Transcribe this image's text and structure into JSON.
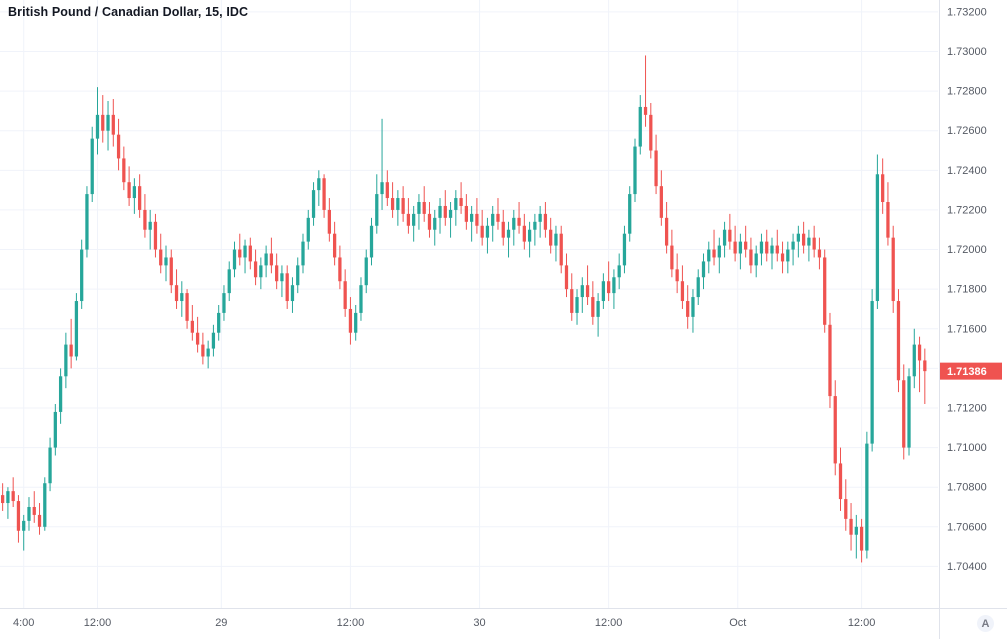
{
  "header": {
    "title": "British Pound / Canadian Dollar, 15, IDC"
  },
  "misc": {
    "corner_button": "A"
  },
  "colors": {
    "up": "#26a69a",
    "down": "#ef5350",
    "grid": "#f0f3fa",
    "axis_border": "#e0e3eb",
    "axis_text": "#555a64",
    "title": "#131722",
    "label_bg": "#ef5350",
    "label_text": "#ffffff",
    "background": "#ffffff"
  },
  "price_label": {
    "value": "1.71386"
  },
  "chart_data": {
    "type": "candlestick",
    "title": "British Pound / Canadian Dollar, 15, IDC",
    "symbol": "British Pound / Canadian Dollar",
    "interval": "15",
    "feed": "IDC",
    "ylim": [
      1.7019,
      1.7326
    ],
    "y_ticks": [
      1.704,
      1.706,
      1.708,
      1.71,
      1.712,
      1.714,
      1.716,
      1.718,
      1.72,
      1.722,
      1.724,
      1.726,
      1.728,
      1.73,
      1.732
    ],
    "x_ticks": [
      {
        "label": "4:00",
        "i": 4
      },
      {
        "label": "12:00",
        "i": 18
      },
      {
        "label": "29",
        "i": 41.5
      },
      {
        "label": "12:00",
        "i": 66
      },
      {
        "label": "30",
        "i": 90.5
      },
      {
        "label": "12:00",
        "i": 115
      },
      {
        "label": "Oct",
        "i": 139.5
      },
      {
        "label": "12:00",
        "i": 163
      }
    ],
    "last_price": 1.71386,
    "grid": true,
    "legend_position": "none",
    "candles": [
      [
        1.7076,
        1.7082,
        1.7068,
        1.7072
      ],
      [
        1.7072,
        1.708,
        1.7064,
        1.7078
      ],
      [
        1.7078,
        1.7085,
        1.707,
        1.7073
      ],
      [
        1.7073,
        1.7076,
        1.7052,
        1.7058
      ],
      [
        1.7058,
        1.7066,
        1.7048,
        1.7063
      ],
      [
        1.7063,
        1.7075,
        1.7058,
        1.707
      ],
      [
        1.707,
        1.7078,
        1.7062,
        1.7066
      ],
      [
        1.7066,
        1.7072,
        1.7056,
        1.706
      ],
      [
        1.706,
        1.7085,
        1.7058,
        1.7082
      ],
      [
        1.7082,
        1.7105,
        1.7078,
        1.71
      ],
      [
        1.71,
        1.7122,
        1.7096,
        1.7118
      ],
      [
        1.7118,
        1.714,
        1.7112,
        1.7136
      ],
      [
        1.7136,
        1.7158,
        1.713,
        1.7152
      ],
      [
        1.7152,
        1.7165,
        1.714,
        1.7146
      ],
      [
        1.7146,
        1.7178,
        1.7144,
        1.7174
      ],
      [
        1.7174,
        1.7205,
        1.717,
        1.72
      ],
      [
        1.72,
        1.7232,
        1.7196,
        1.7228
      ],
      [
        1.7228,
        1.7262,
        1.7224,
        1.7256
      ],
      [
        1.7256,
        1.7282,
        1.7248,
        1.7268
      ],
      [
        1.7268,
        1.7278,
        1.7254,
        1.726
      ],
      [
        1.726,
        1.7275,
        1.725,
        1.7268
      ],
      [
        1.7268,
        1.7276,
        1.7252,
        1.7258
      ],
      [
        1.7258,
        1.7266,
        1.724,
        1.7246
      ],
      [
        1.7246,
        1.7252,
        1.723,
        1.7234
      ],
      [
        1.7234,
        1.7242,
        1.7222,
        1.7226
      ],
      [
        1.7226,
        1.7236,
        1.7218,
        1.7232
      ],
      [
        1.7232,
        1.7238,
        1.7216,
        1.722
      ],
      [
        1.722,
        1.7228,
        1.7206,
        1.721
      ],
      [
        1.721,
        1.722,
        1.72,
        1.7214
      ],
      [
        1.7214,
        1.7218,
        1.7196,
        1.72
      ],
      [
        1.72,
        1.7208,
        1.7188,
        1.7192
      ],
      [
        1.7192,
        1.7202,
        1.7184,
        1.7196
      ],
      [
        1.7196,
        1.72,
        1.7178,
        1.7182
      ],
      [
        1.7182,
        1.719,
        1.717,
        1.7174
      ],
      [
        1.7174,
        1.7184,
        1.7166,
        1.7178
      ],
      [
        1.7178,
        1.718,
        1.716,
        1.7164
      ],
      [
        1.7164,
        1.7172,
        1.7154,
        1.7158
      ],
      [
        1.7158,
        1.7166,
        1.7148,
        1.7152
      ],
      [
        1.7152,
        1.7158,
        1.7142,
        1.7146
      ],
      [
        1.7146,
        1.7154,
        1.714,
        1.715
      ],
      [
        1.715,
        1.7162,
        1.7146,
        1.7158
      ],
      [
        1.7158,
        1.7172,
        1.7154,
        1.7168
      ],
      [
        1.7168,
        1.7182,
        1.7164,
        1.7178
      ],
      [
        1.7178,
        1.7194,
        1.7174,
        1.719
      ],
      [
        1.719,
        1.7204,
        1.7186,
        1.72
      ],
      [
        1.72,
        1.7208,
        1.7192,
        1.7196
      ],
      [
        1.7196,
        1.7205,
        1.7188,
        1.7202
      ],
      [
        1.7202,
        1.7206,
        1.719,
        1.7194
      ],
      [
        1.7194,
        1.72,
        1.7182,
        1.7186
      ],
      [
        1.7186,
        1.7196,
        1.718,
        1.7192
      ],
      [
        1.7192,
        1.7202,
        1.7186,
        1.7198
      ],
      [
        1.7198,
        1.7206,
        1.7188,
        1.7192
      ],
      [
        1.7192,
        1.7198,
        1.718,
        1.7184
      ],
      [
        1.7184,
        1.7192,
        1.7176,
        1.7188
      ],
      [
        1.7188,
        1.7192,
        1.717,
        1.7174
      ],
      [
        1.7174,
        1.7186,
        1.7168,
        1.7182
      ],
      [
        1.7182,
        1.7196,
        1.7178,
        1.7192
      ],
      [
        1.7192,
        1.7208,
        1.7188,
        1.7204
      ],
      [
        1.7204,
        1.722,
        1.72,
        1.7216
      ],
      [
        1.7216,
        1.7234,
        1.7212,
        1.723
      ],
      [
        1.723,
        1.724,
        1.7222,
        1.7236
      ],
      [
        1.7236,
        1.7238,
        1.7216,
        1.722
      ],
      [
        1.722,
        1.7226,
        1.7204,
        1.7208
      ],
      [
        1.7208,
        1.7214,
        1.7192,
        1.7196
      ],
      [
        1.7196,
        1.7202,
        1.718,
        1.7184
      ],
      [
        1.7184,
        1.719,
        1.7166,
        1.717
      ],
      [
        1.717,
        1.7176,
        1.7152,
        1.7158
      ],
      [
        1.7158,
        1.7172,
        1.7154,
        1.7168
      ],
      [
        1.7168,
        1.7186,
        1.7164,
        1.7182
      ],
      [
        1.7182,
        1.72,
        1.7178,
        1.7196
      ],
      [
        1.7196,
        1.7216,
        1.7192,
        1.7212
      ],
      [
        1.7212,
        1.7238,
        1.7208,
        1.7228
      ],
      [
        1.7228,
        1.7266,
        1.722,
        1.7234
      ],
      [
        1.7234,
        1.724,
        1.7222,
        1.7226
      ],
      [
        1.7226,
        1.7234,
        1.7216,
        1.722
      ],
      [
        1.722,
        1.723,
        1.7212,
        1.7226
      ],
      [
        1.7226,
        1.7232,
        1.7214,
        1.7218
      ],
      [
        1.7218,
        1.7226,
        1.7208,
        1.7212
      ],
      [
        1.7212,
        1.7222,
        1.7204,
        1.7218
      ],
      [
        1.7218,
        1.7228,
        1.721,
        1.7224
      ],
      [
        1.7224,
        1.7232,
        1.7214,
        1.7218
      ],
      [
        1.7218,
        1.7224,
        1.7206,
        1.721
      ],
      [
        1.721,
        1.722,
        1.7202,
        1.7216
      ],
      [
        1.7216,
        1.7226,
        1.7208,
        1.7222
      ],
      [
        1.7222,
        1.723,
        1.7212,
        1.7216
      ],
      [
        1.7216,
        1.7224,
        1.7206,
        1.722
      ],
      [
        1.722,
        1.723,
        1.7212,
        1.7226
      ],
      [
        1.7226,
        1.7234,
        1.7218,
        1.7222
      ],
      [
        1.7222,
        1.7228,
        1.721,
        1.7214
      ],
      [
        1.7214,
        1.7222,
        1.7204,
        1.7218
      ],
      [
        1.7218,
        1.7226,
        1.7208,
        1.7212
      ],
      [
        1.7212,
        1.722,
        1.7202,
        1.7206
      ],
      [
        1.7206,
        1.7216,
        1.7198,
        1.7212
      ],
      [
        1.7212,
        1.7222,
        1.7204,
        1.7218
      ],
      [
        1.7218,
        1.7226,
        1.721,
        1.7214
      ],
      [
        1.7214,
        1.722,
        1.7202,
        1.7206
      ],
      [
        1.7206,
        1.7214,
        1.7196,
        1.721
      ],
      [
        1.721,
        1.722,
        1.7202,
        1.7216
      ],
      [
        1.7216,
        1.7224,
        1.7208,
        1.7212
      ],
      [
        1.7212,
        1.7218,
        1.72,
        1.7204
      ],
      [
        1.7204,
        1.7214,
        1.7196,
        1.721
      ],
      [
        1.721,
        1.7218,
        1.7202,
        1.7214
      ],
      [
        1.7214,
        1.7222,
        1.7206,
        1.7218
      ],
      [
        1.7218,
        1.7224,
        1.7206,
        1.721
      ],
      [
        1.721,
        1.7216,
        1.7198,
        1.7202
      ],
      [
        1.7202,
        1.7212,
        1.7194,
        1.7208
      ],
      [
        1.7208,
        1.7212,
        1.7188,
        1.7192
      ],
      [
        1.7192,
        1.7198,
        1.7176,
        1.718
      ],
      [
        1.718,
        1.7188,
        1.7164,
        1.7168
      ],
      [
        1.7168,
        1.718,
        1.7162,
        1.7176
      ],
      [
        1.7176,
        1.7186,
        1.7168,
        1.7182
      ],
      [
        1.7182,
        1.7192,
        1.7172,
        1.7176
      ],
      [
        1.7176,
        1.7184,
        1.7162,
        1.7166
      ],
      [
        1.7166,
        1.7178,
        1.7156,
        1.7174
      ],
      [
        1.7174,
        1.7188,
        1.717,
        1.7184
      ],
      [
        1.7184,
        1.7194,
        1.7174,
        1.7178
      ],
      [
        1.7178,
        1.719,
        1.717,
        1.7186
      ],
      [
        1.7186,
        1.7198,
        1.718,
        1.7192
      ],
      [
        1.7192,
        1.7212,
        1.7188,
        1.7208
      ],
      [
        1.7208,
        1.7232,
        1.7204,
        1.7228
      ],
      [
        1.7228,
        1.7256,
        1.7224,
        1.7252
      ],
      [
        1.7252,
        1.7278,
        1.7248,
        1.7272
      ],
      [
        1.7272,
        1.7298,
        1.7262,
        1.7268
      ],
      [
        1.7268,
        1.7274,
        1.7246,
        1.725
      ],
      [
        1.725,
        1.7258,
        1.7228,
        1.7232
      ],
      [
        1.7232,
        1.724,
        1.7212,
        1.7216
      ],
      [
        1.7216,
        1.7224,
        1.7198,
        1.7202
      ],
      [
        1.7202,
        1.721,
        1.7186,
        1.719
      ],
      [
        1.719,
        1.7198,
        1.7178,
        1.7184
      ],
      [
        1.7184,
        1.7192,
        1.717,
        1.7174
      ],
      [
        1.7174,
        1.7182,
        1.716,
        1.7166
      ],
      [
        1.7166,
        1.718,
        1.7158,
        1.7176
      ],
      [
        1.7176,
        1.719,
        1.7172,
        1.7186
      ],
      [
        1.7186,
        1.7198,
        1.718,
        1.7194
      ],
      [
        1.7194,
        1.7204,
        1.7188,
        1.72
      ],
      [
        1.72,
        1.721,
        1.7192,
        1.7196
      ],
      [
        1.7196,
        1.7206,
        1.7188,
        1.7202
      ],
      [
        1.7202,
        1.7214,
        1.7196,
        1.721
      ],
      [
        1.721,
        1.7218,
        1.72,
        1.7204
      ],
      [
        1.7204,
        1.7212,
        1.7194,
        1.7198
      ],
      [
        1.7198,
        1.7208,
        1.719,
        1.7204
      ],
      [
        1.7204,
        1.7212,
        1.7196,
        1.72
      ],
      [
        1.72,
        1.7206,
        1.7188,
        1.7192
      ],
      [
        1.7192,
        1.7202,
        1.7186,
        1.7198
      ],
      [
        1.7198,
        1.7208,
        1.7192,
        1.7204
      ],
      [
        1.7204,
        1.721,
        1.7194,
        1.7198
      ],
      [
        1.7198,
        1.7206,
        1.719,
        1.7202
      ],
      [
        1.7202,
        1.721,
        1.7194,
        1.7198
      ],
      [
        1.7198,
        1.7204,
        1.7188,
        1.7194
      ],
      [
        1.7194,
        1.7204,
        1.7188,
        1.72
      ],
      [
        1.72,
        1.7208,
        1.7192,
        1.7204
      ],
      [
        1.7204,
        1.7212,
        1.7196,
        1.7208
      ],
      [
        1.7208,
        1.7214,
        1.7198,
        1.7202
      ],
      [
        1.7202,
        1.721,
        1.7194,
        1.7206
      ],
      [
        1.7206,
        1.7212,
        1.7196,
        1.72
      ],
      [
        1.72,
        1.7206,
        1.719,
        1.7196
      ],
      [
        1.7196,
        1.72,
        1.7158,
        1.7162
      ],
      [
        1.7162,
        1.7168,
        1.712,
        1.7126
      ],
      [
        1.7126,
        1.7134,
        1.7086,
        1.7092
      ],
      [
        1.7092,
        1.71,
        1.7068,
        1.7074
      ],
      [
        1.7074,
        1.7084,
        1.7058,
        1.7064
      ],
      [
        1.7064,
        1.7072,
        1.7048,
        1.7056
      ],
      [
        1.7056,
        1.7066,
        1.7044,
        1.706
      ],
      [
        1.706,
        1.7064,
        1.7042,
        1.7048
      ],
      [
        1.7048,
        1.7108,
        1.7044,
        1.7102
      ],
      [
        1.7102,
        1.718,
        1.7098,
        1.7174
      ],
      [
        1.7174,
        1.7248,
        1.717,
        1.7238
      ],
      [
        1.7238,
        1.7246,
        1.7218,
        1.7224
      ],
      [
        1.7224,
        1.7234,
        1.7202,
        1.7206
      ],
      [
        1.7206,
        1.7212,
        1.7168,
        1.7174
      ],
      [
        1.7174,
        1.718,
        1.7128,
        1.7134
      ],
      [
        1.7134,
        1.7142,
        1.7094,
        1.71
      ],
      [
        1.71,
        1.714,
        1.7096,
        1.7136
      ],
      [
        1.7136,
        1.716,
        1.713,
        1.7152
      ],
      [
        1.7152,
        1.7156,
        1.7128,
        1.7144
      ],
      [
        1.7144,
        1.715,
        1.7122,
        1.71386
      ]
    ]
  }
}
